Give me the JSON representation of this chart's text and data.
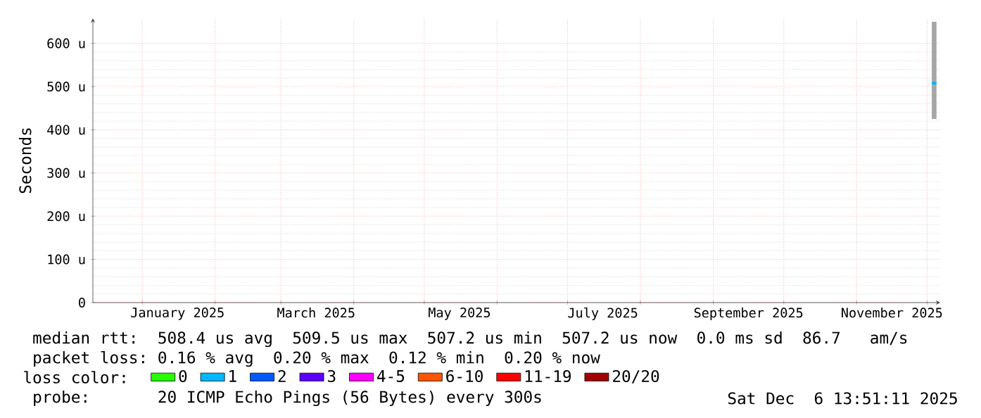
{
  "chart_data": {
    "type": "line",
    "ylabel": "Seconds",
    "legend_title": "loss color:",
    "x": [
      "2025-12-03",
      "2025-12-05"
    ],
    "xlim": [
      "2024-12-11",
      "2025-12-06T13:51"
    ],
    "xticks": [
      {
        "value": "2025-01-01",
        "label": null
      },
      {
        "value": "2025-02-01",
        "label": null
      },
      {
        "value": "2025-03-01",
        "label": null
      },
      {
        "value": "2025-04-01",
        "label": null
      },
      {
        "value": "2025-05-01",
        "label": null
      },
      {
        "value": "2025-06-01",
        "label": null
      },
      {
        "value": "2025-07-01",
        "label": null
      },
      {
        "value": "2025-08-01",
        "label": null
      },
      {
        "value": "2025-09-01",
        "label": null
      },
      {
        "value": "2025-10-01",
        "label": null
      },
      {
        "value": "2025-11-01",
        "label": null
      },
      {
        "value": "2025-12-01",
        "label": null
      },
      {
        "value": "2025-01-16",
        "label": "January 2025"
      },
      {
        "value": "2025-03-16",
        "label": "March 2025"
      },
      {
        "value": "2025-05-16",
        "label": "May 2025"
      },
      {
        "value": "2025-07-16",
        "label": "July 2025"
      },
      {
        "value": "2025-09-16",
        "label": "September 2025"
      },
      {
        "value": "2025-11-16",
        "label": "November 2025"
      }
    ],
    "ylim": [
      0,
      658
    ],
    "yticks": [
      0,
      {
        "value": 100,
        "label": "100 u"
      },
      {
        "value": 200,
        "label": "200 u"
      },
      {
        "value": 300,
        "label": "300 u"
      },
      {
        "value": 400,
        "label": "400 u"
      },
      {
        "value": 500,
        "label": "500 u"
      },
      {
        "value": 600,
        "label": "600 u"
      }
    ],
    "grid": true,
    "legend": "bottom",
    "series": [
      {
        "color": "#00b8ff",
        "values": [
          508,
          508
        ],
        "lower": [
          425,
          425
        ],
        "upper": [
          650,
          650
        ]
      },
      {
        "name": "0",
        "color": "#26ff00",
        "values": [
          null,
          null
        ]
      },
      {
        "name": "1",
        "color": "#00b8ff",
        "values": [
          null,
          null
        ]
      },
      {
        "name": "2",
        "color": "#0059ff",
        "values": [
          null,
          null
        ]
      },
      {
        "name": "3",
        "color": "#5e00ff",
        "values": [
          null,
          null
        ]
      },
      {
        "name": "4-5",
        "color": "#ff00ff",
        "values": [
          null,
          null
        ]
      },
      {
        "name": "6-10",
        "color": "#ff5500",
        "values": [
          null,
          null
        ]
      },
      {
        "name": "11-19",
        "color": "#ff0000",
        "values": [
          null,
          null
        ]
      },
      {
        "name": "20/20",
        "color": "#a10000",
        "values": [
          null,
          null
        ]
      }
    ],
    "annotations": [
      "median rtt:  508.4 us avg  509.5 us max  507.2 us min  507.2 us now  0.0 ms sd  86.7   am/s",
      "packet loss: 0.16 % avg  0.20 % max  0.12 % min  0.20 % now",
      "probe:       20 ICMP Echo Pings (56 Bytes) every 300s",
      "Sat Dec  6 13:51:11 2025"
    ]
  }
}
